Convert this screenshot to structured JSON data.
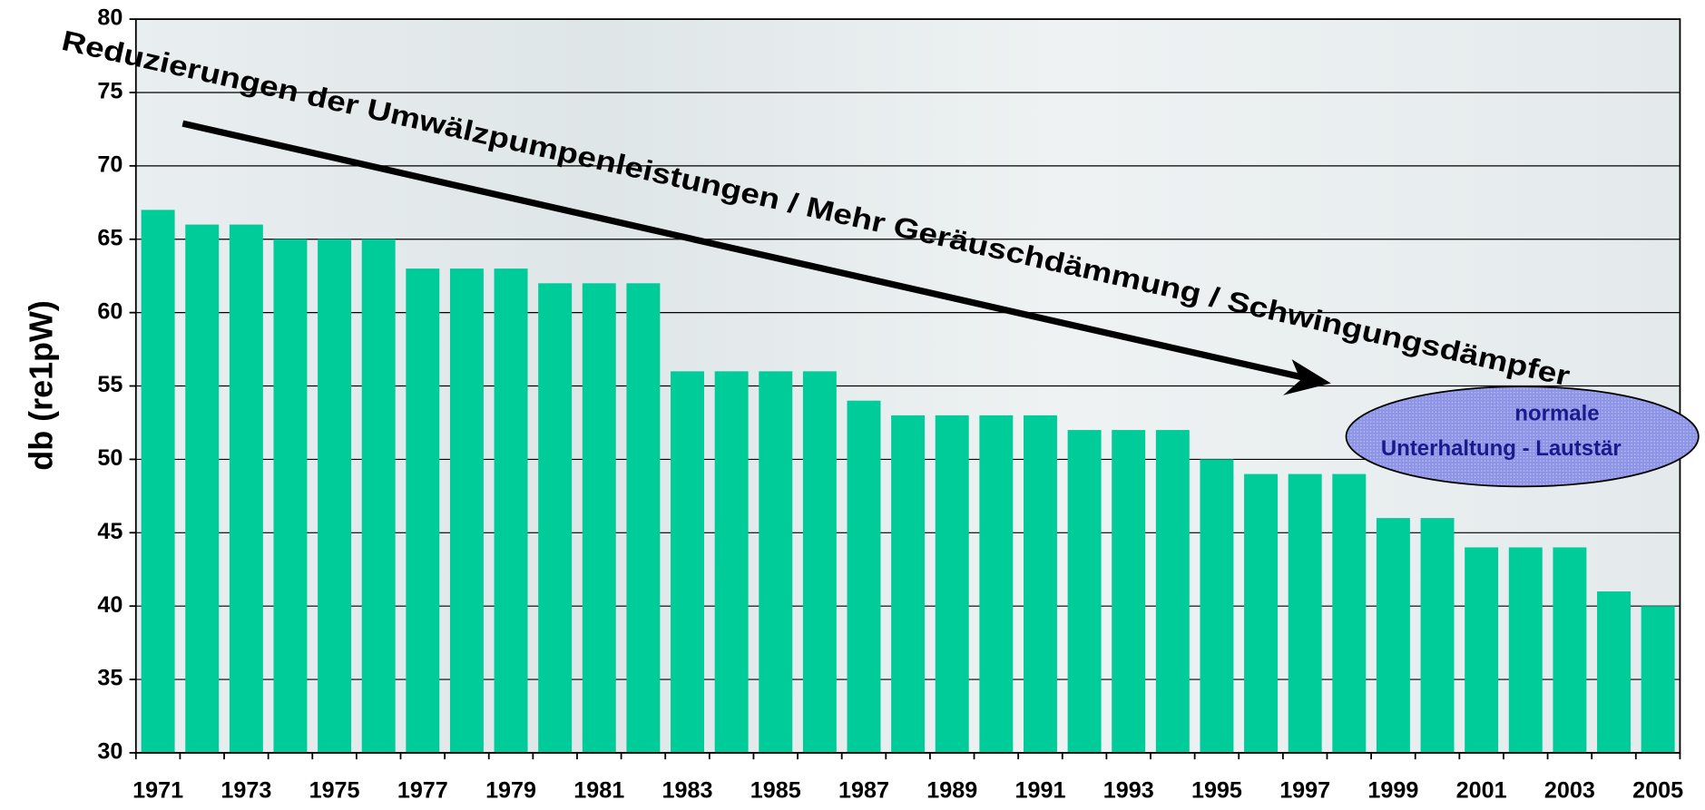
{
  "chart_data": {
    "type": "bar",
    "y_label": "db (re1pW)",
    "annotations": [
      "Reduzierungen der Umwälzpumpenleistungen / Mehr Geräuschdämmung / Schwingungsdämpfer",
      "normale",
      "Unterhaltung - Lautstär"
    ],
    "categories": [
      "1971",
      null,
      "1973",
      null,
      "1975",
      null,
      "1977",
      null,
      "1979",
      null,
      "1981",
      null,
      "1983",
      null,
      "1985",
      null,
      "1987",
      null,
      "1989",
      null,
      "1991",
      null,
      "1993",
      null,
      "1995",
      null,
      "1997",
      null,
      "1999",
      null,
      "2001",
      null,
      "2003",
      null,
      "2005"
    ],
    "values": [
      67,
      66,
      66,
      65,
      65,
      65,
      63,
      63,
      63,
      62,
      62,
      62,
      56,
      56,
      56,
      56,
      54,
      53,
      53,
      53,
      53,
      52,
      52,
      52,
      50,
      49,
      49,
      49,
      46,
      46,
      44,
      44,
      44,
      41,
      40
    ],
    "color": "#00cc99",
    "ylim": [
      30,
      80
    ],
    "yticks": [
      30,
      35,
      40,
      45,
      50,
      55,
      60,
      65,
      70,
      75,
      80
    ],
    "grid": true
  }
}
